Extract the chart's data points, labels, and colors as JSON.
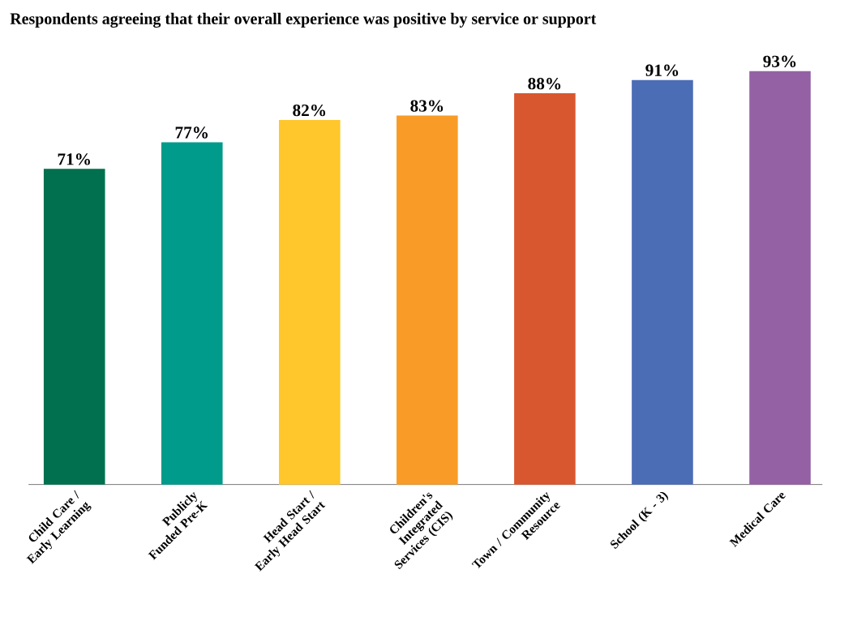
{
  "chart_data": {
    "type": "bar",
    "title": "Respondents agreeing that their overall experience was positive by service or support",
    "categories": [
      "Child Care / Early Learning",
      "Publicly Funded Pre-K",
      "Head Start / Early Head Start",
      "Children's Integrated Services (CIS)",
      "Town / Community Resource",
      "School (K - 3)",
      "Medical Care"
    ],
    "values": [
      71,
      77,
      82,
      83,
      88,
      91,
      93
    ],
    "colors": [
      "#00704f",
      "#009b8a",
      "#ffc72c",
      "#f89c27",
      "#d9572f",
      "#4a6db5",
      "#9461a5"
    ],
    "value_labels": [
      "71%",
      "77%",
      "82%",
      "83%",
      "88%",
      "91%",
      "93%"
    ]
  }
}
